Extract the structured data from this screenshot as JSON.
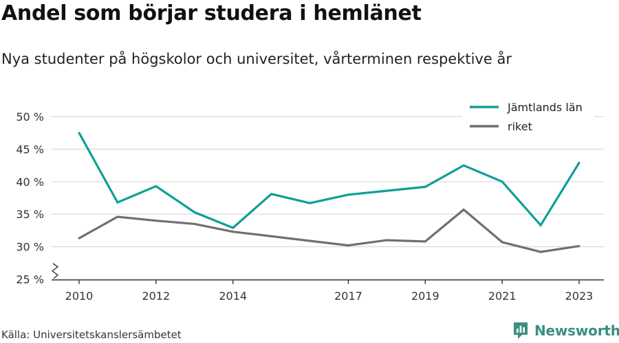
{
  "title": "Andel som börjar studera i hemlänet",
  "subtitle": "Nya studenter på högskolor och universitet, vårterminen respektive år",
  "source": "Källa: Universitetskanslersämbetet",
  "brand": "Newsworthy",
  "colors": {
    "jamtland": "#0e9f96",
    "riket": "#6f6e74",
    "grid": "#d9d9d9",
    "axis": "#333333",
    "brand": "#3a8f80"
  },
  "chart_data": {
    "type": "line",
    "x": [
      2010,
      2011,
      2012,
      2013,
      2014,
      2015,
      2016,
      2017,
      2018,
      2019,
      2020,
      2021,
      2022,
      2023
    ],
    "x_ticks": [
      2010,
      2012,
      2014,
      2017,
      2019,
      2021,
      2023
    ],
    "y_ticks": [
      25,
      30,
      35,
      40,
      45,
      50
    ],
    "y_tick_labels": [
      "25 %",
      "30 %",
      "35 %",
      "40 %",
      "45 %",
      "50 %"
    ],
    "ylim": [
      25,
      50
    ],
    "y_axis_break": true,
    "grid": true,
    "legend_position": "top-right",
    "series": [
      {
        "name": "Jämtlands län",
        "color": "#0e9f96",
        "values": [
          47.5,
          36.8,
          39.3,
          35.3,
          32.9,
          38.1,
          36.7,
          38.0,
          38.6,
          39.2,
          42.5,
          40.0,
          33.3,
          42.9
        ]
      },
      {
        "name": "riket",
        "color": "#6f6e74",
        "values": [
          31.3,
          34.6,
          34.0,
          33.5,
          32.3,
          31.6,
          30.9,
          30.2,
          31.0,
          30.8,
          35.7,
          30.7,
          29.2,
          30.1
        ]
      }
    ]
  }
}
